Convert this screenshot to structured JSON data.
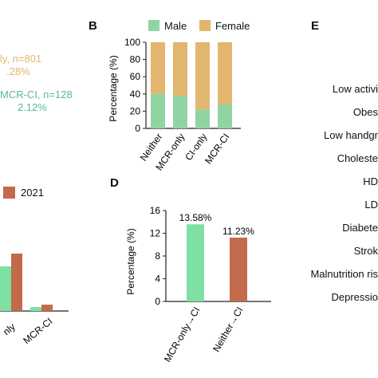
{
  "panel_letters": {
    "b": "B",
    "d": "D",
    "e": "E"
  },
  "panel_a": {
    "ann_mcr_only": "ly, n=801",
    "ann_mcr_only_pct": ".28%",
    "ann_mcr_ci": "MCR-CI, n=128",
    "ann_mcr_ci_pct": "2.12%",
    "legend_2021": "2021",
    "tick_only": "nly",
    "tick_mcr_ci": "MCR-CI"
  },
  "panel_e": {
    "items": [
      "Low activi",
      "Obes",
      "Low handgr",
      "Choleste",
      "HD",
      "LD",
      "Diabete",
      "Strok",
      "Malnutrition ris",
      "Depressio"
    ]
  },
  "colors": {
    "male": "#90d4a4",
    "female": "#e2b66e",
    "green_bar": "#7fe0a5",
    "red_bar": "#c26a4c",
    "teal_text": "#59b8a0"
  },
  "chart_data": [
    {
      "panel": "A",
      "type": "bar",
      "categories": [
        "nly",
        "MCR-CI"
      ],
      "legend": [
        "2021"
      ],
      "series": [
        {
          "color": "#7fe0a5",
          "values": [
            56,
            5
          ]
        },
        {
          "name": "2021",
          "color": "#c26a4c",
          "values": [
            72,
            8
          ]
        }
      ]
    },
    {
      "panel": "B",
      "type": "bar",
      "stacked": true,
      "categories": [
        "Neither",
        "MCR-only",
        "CI-only",
        "MCR-CI"
      ],
      "series": [
        {
          "name": "Male",
          "color": "#90d4a4",
          "values": [
            40,
            38,
            22,
            28
          ]
        },
        {
          "name": "Female",
          "color": "#e2b66e",
          "values": [
            60,
            62,
            78,
            72
          ]
        }
      ],
      "ylabel": "Percentage (%)",
      "yticks": [
        "0",
        "20",
        "40",
        "60",
        "80",
        "100"
      ],
      "ylim": [
        0,
        100
      ],
      "legend_position": "top"
    },
    {
      "panel": "D",
      "type": "bar",
      "categories": [
        "MCR-only→CI",
        "Neither→CI"
      ],
      "values": [
        13.58,
        11.23
      ],
      "data_labels": [
        "13.58%",
        "11.23%"
      ],
      "colors": [
        "#7fe0a5",
        "#c26a4c"
      ],
      "ylabel": "Percentage (%)",
      "yticks": [
        "0",
        "4",
        "8",
        "12",
        "16"
      ],
      "ylim": [
        0,
        16
      ]
    }
  ]
}
